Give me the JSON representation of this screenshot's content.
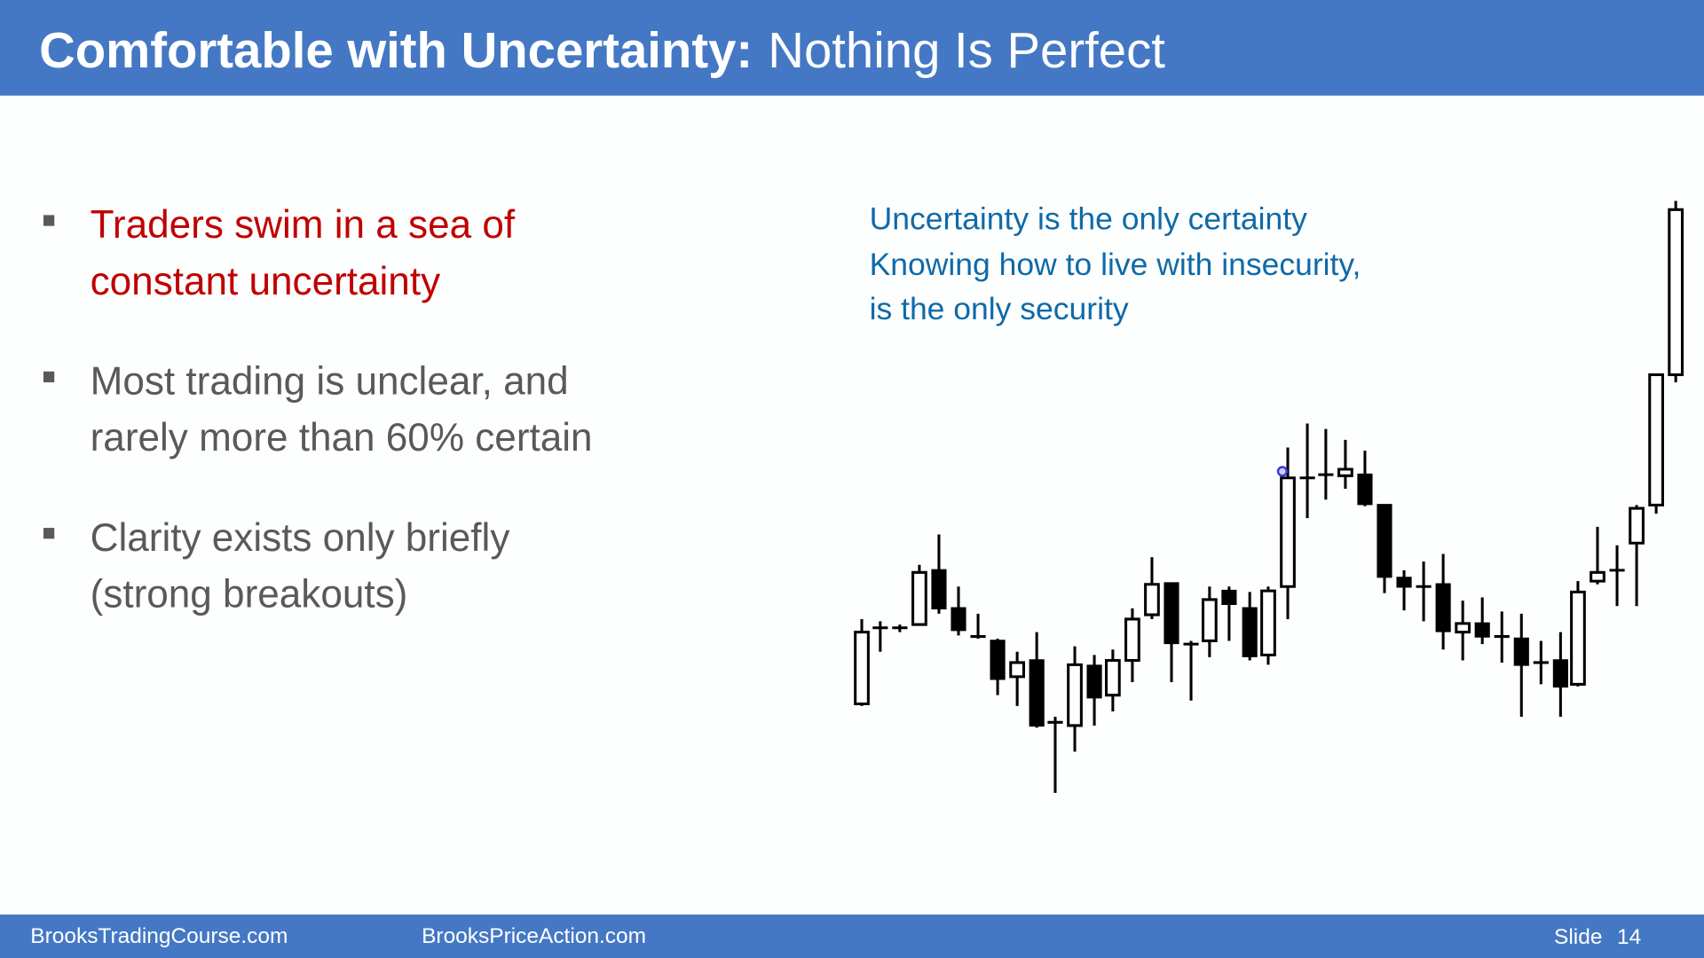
{
  "header": {
    "title_bold": "Comfortable with Uncertainty:",
    "title_rest": "Nothing Is Perfect"
  },
  "bullets": [
    {
      "lines": [
        "Traders swim in a sea of",
        "constant uncertainty"
      ]
    },
    {
      "lines": [
        "Most trading is unclear, and",
        "rarely more than 60% certain"
      ]
    },
    {
      "lines": [
        "Clarity exists only briefly",
        "(strong breakouts)"
      ]
    }
  ],
  "quote": {
    "lines": [
      "Uncertainty is the only certainty",
      "Knowing how to live with insecurity,",
      "is the only security"
    ]
  },
  "footer": {
    "left": "BrooksTradingCourse.com",
    "middle": "BrooksPriceAction.com",
    "slide_label": "Slide",
    "slide_number": "14"
  }
}
